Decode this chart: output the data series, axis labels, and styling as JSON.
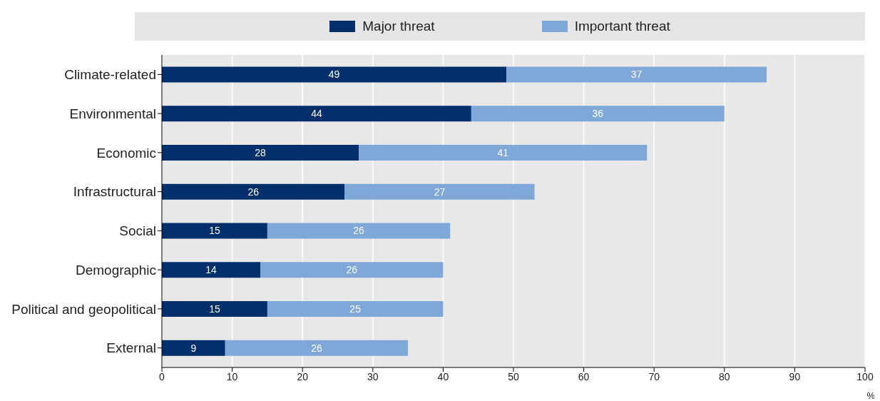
{
  "chart_data": {
    "type": "bar",
    "orientation": "horizontal",
    "stacked": true,
    "xlabel": "%",
    "categories": [
      "Climate-related",
      "Environmental",
      "Economic",
      "Infrastructural",
      "Social",
      "Demographic",
      "Political and geopolitical",
      "External"
    ],
    "series": [
      {
        "name": "Major threat",
        "color": "#002f6c",
        "values": [
          49,
          44,
          28,
          26,
          15,
          14,
          15,
          9
        ]
      },
      {
        "name": "Important threat",
        "color": "#7fa8d9",
        "values": [
          37,
          36,
          41,
          27,
          26,
          26,
          25,
          26
        ]
      }
    ],
    "xlim": [
      0,
      100
    ],
    "xticks": [
      0,
      10,
      20,
      30,
      40,
      50,
      60,
      70,
      80,
      90,
      100
    ],
    "data_labels": true,
    "grid": "x",
    "legend": "top"
  }
}
